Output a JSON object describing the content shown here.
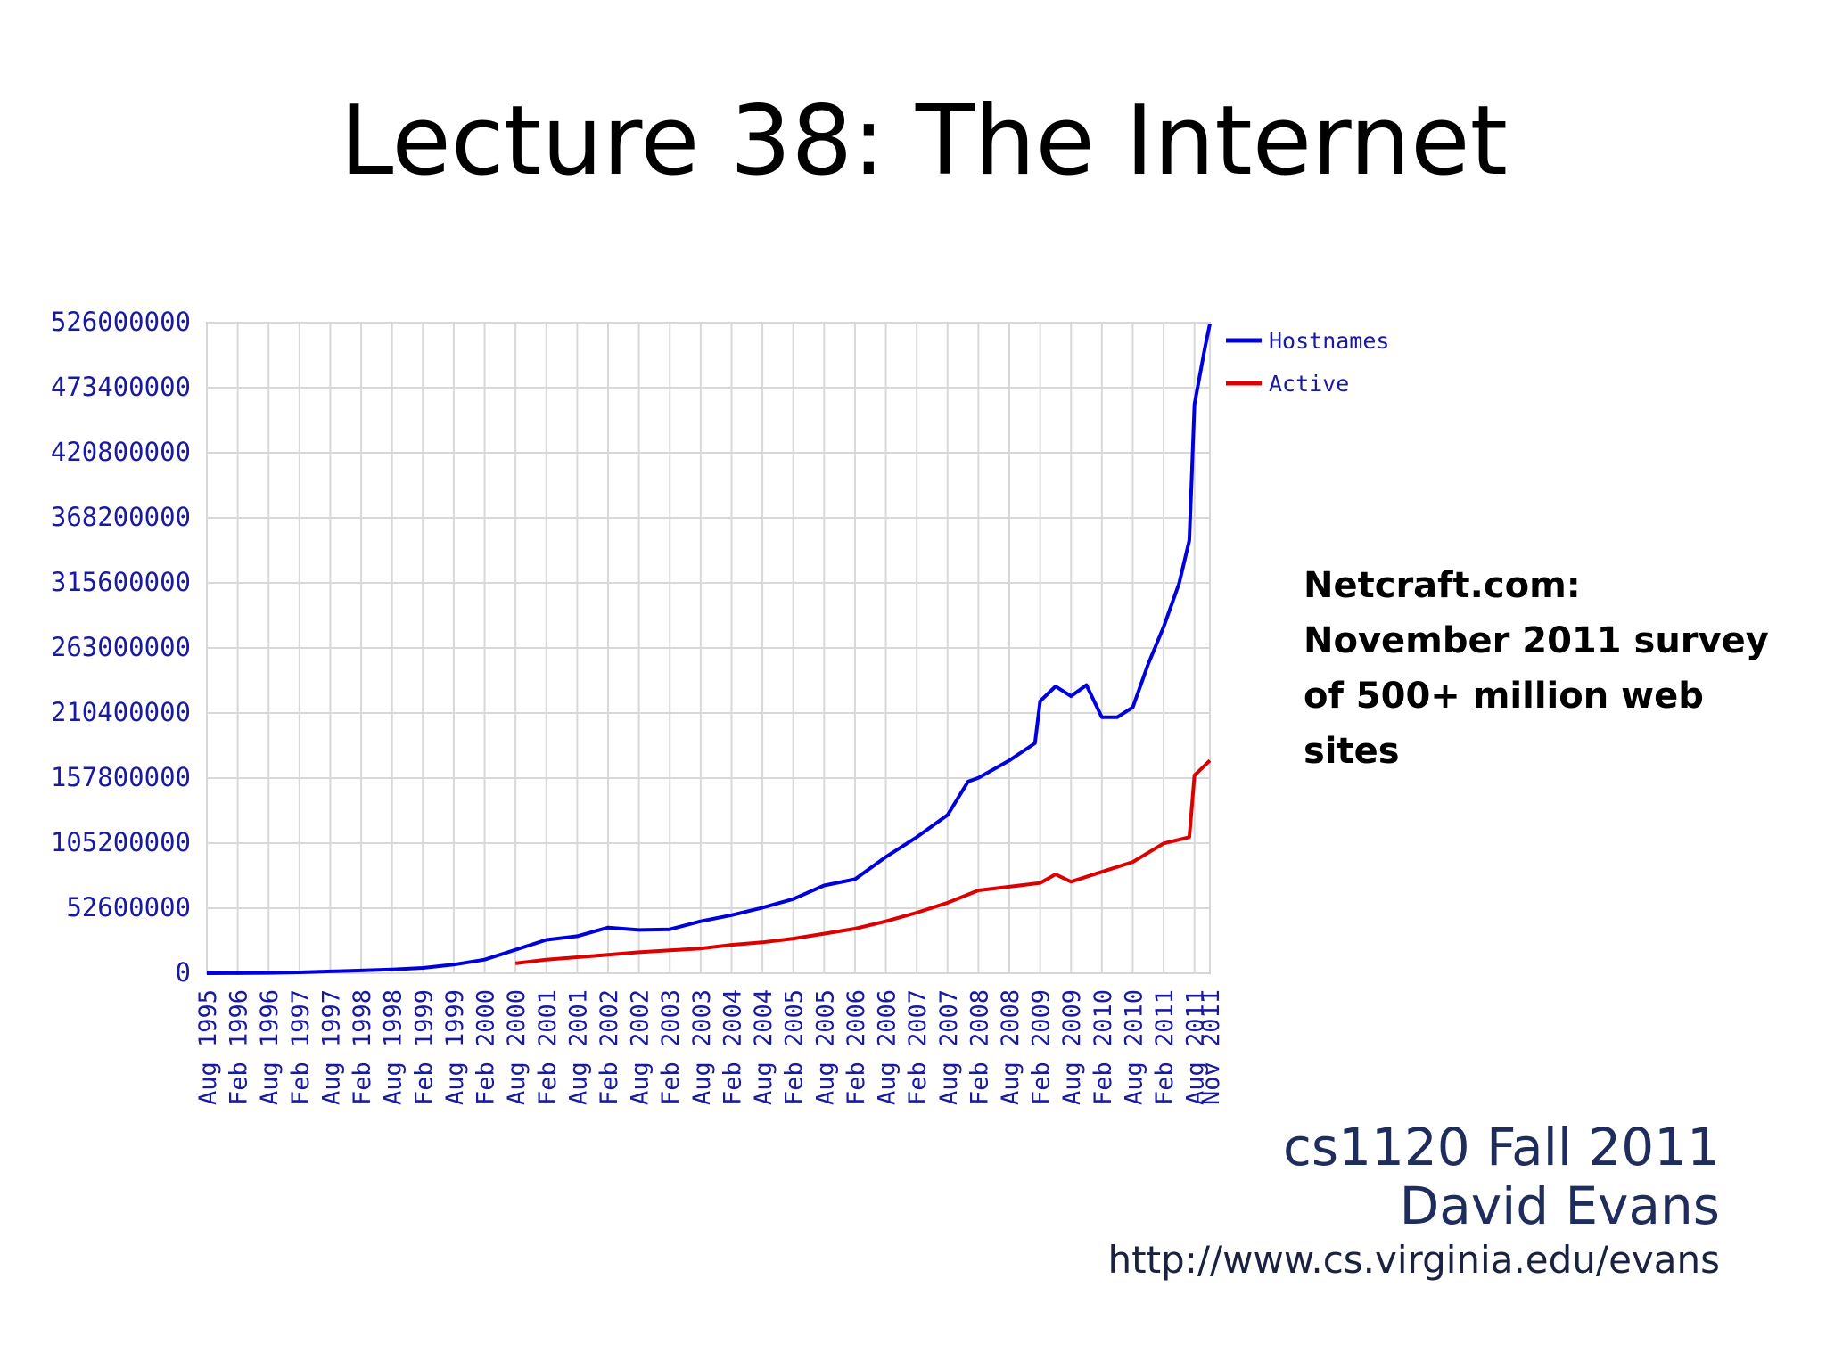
{
  "slide": {
    "title": "Lecture 38: The Internet",
    "note": "Netcraft.com: November 2011 survey of 500+ million web sites",
    "course": "cs1120 Fall 2011",
    "author": "David Evans",
    "url": "http://www.cs.virginia.edu/evans"
  },
  "chart_data": {
    "type": "line",
    "title": "",
    "xlabel": "",
    "ylabel": "",
    "ylim": [
      0,
      526000000
    ],
    "grid": true,
    "legend_position": "top-right",
    "y_ticks": [
      0,
      52600000,
      105200000,
      157800000,
      210400000,
      263000000,
      315600000,
      368200000,
      420800000,
      473400000,
      526000000
    ],
    "x_tick_labels": [
      "Aug 1995",
      "Feb 1996",
      "Aug 1996",
      "Feb 1997",
      "Aug 1997",
      "Feb 1998",
      "Aug 1998",
      "Feb 1999",
      "Aug 1999",
      "Feb 2000",
      "Aug 2000",
      "Feb 2001",
      "Aug 2001",
      "Feb 2002",
      "Aug 2002",
      "Feb 2003",
      "Aug 2003",
      "Feb 2004",
      "Aug 2004",
      "Feb 2005",
      "Aug 2005",
      "Feb 2006",
      "Aug 2006",
      "Feb 2007",
      "Aug 2007",
      "Feb 2008",
      "Aug 2008",
      "Feb 2009",
      "Aug 2009",
      "Feb 2010",
      "Aug 2010",
      "Feb 2011",
      "Aug 2011",
      "Nov 2011"
    ],
    "colors": {
      "Hostnames": "#0000dd",
      "Active": "#dd0000",
      "axis_text": "#1a1aa0",
      "grid": "#d8d8d8"
    },
    "series": [
      {
        "name": "Hostnames",
        "points": [
          [
            "1995-08",
            0
          ],
          [
            "1996-02",
            100000
          ],
          [
            "1996-08",
            300000
          ],
          [
            "1997-02",
            700000
          ],
          [
            "1997-08",
            1500000
          ],
          [
            "1998-02",
            2200000
          ],
          [
            "1998-08",
            3000000
          ],
          [
            "1999-02",
            4300000
          ],
          [
            "1999-08",
            7000000
          ],
          [
            "2000-02",
            11000000
          ],
          [
            "2000-08",
            19000000
          ],
          [
            "2001-02",
            27000000
          ],
          [
            "2001-08",
            30000000
          ],
          [
            "2002-02",
            37000000
          ],
          [
            "2002-08",
            35000000
          ],
          [
            "2003-02",
            35500000
          ],
          [
            "2003-08",
            42000000
          ],
          [
            "2004-02",
            47000000
          ],
          [
            "2004-08",
            53000000
          ],
          [
            "2005-02",
            60000000
          ],
          [
            "2005-08",
            71000000
          ],
          [
            "2006-02",
            76000000
          ],
          [
            "2006-08",
            94000000
          ],
          [
            "2007-02",
            110000000
          ],
          [
            "2007-08",
            128000000
          ],
          [
            "2007-12",
            155000000
          ],
          [
            "2008-02",
            158000000
          ],
          [
            "2008-08",
            172000000
          ],
          [
            "2009-01",
            186000000
          ],
          [
            "2009-02",
            220000000
          ],
          [
            "2009-05",
            232000000
          ],
          [
            "2009-08",
            224000000
          ],
          [
            "2009-11",
            233000000
          ],
          [
            "2010-02",
            207000000
          ],
          [
            "2010-05",
            207000000
          ],
          [
            "2010-08",
            215000000
          ],
          [
            "2010-11",
            250000000
          ],
          [
            "2011-02",
            280000000
          ],
          [
            "2011-05",
            315000000
          ],
          [
            "2011-07",
            350000000
          ],
          [
            "2011-08",
            460000000
          ],
          [
            "2011-10",
            505000000
          ],
          [
            "2011-11",
            525000000
          ]
        ]
      },
      {
        "name": "Active",
        "points": [
          [
            "2000-08",
            8000000
          ],
          [
            "2001-02",
            11000000
          ],
          [
            "2001-08",
            13000000
          ],
          [
            "2002-02",
            15000000
          ],
          [
            "2002-08",
            17000000
          ],
          [
            "2003-02",
            18500000
          ],
          [
            "2003-08",
            20000000
          ],
          [
            "2004-02",
            23000000
          ],
          [
            "2004-08",
            25000000
          ],
          [
            "2005-02",
            28000000
          ],
          [
            "2005-08",
            32000000
          ],
          [
            "2006-02",
            36000000
          ],
          [
            "2006-08",
            42000000
          ],
          [
            "2007-02",
            49000000
          ],
          [
            "2007-08",
            57000000
          ],
          [
            "2008-02",
            67000000
          ],
          [
            "2008-08",
            70000000
          ],
          [
            "2009-02",
            73000000
          ],
          [
            "2009-05",
            80000000
          ],
          [
            "2009-08",
            74000000
          ],
          [
            "2010-02",
            82000000
          ],
          [
            "2010-08",
            90000000
          ],
          [
            "2011-02",
            105000000
          ],
          [
            "2011-07",
            110000000
          ],
          [
            "2011-08",
            160000000
          ],
          [
            "2011-11",
            172000000
          ]
        ]
      }
    ]
  }
}
